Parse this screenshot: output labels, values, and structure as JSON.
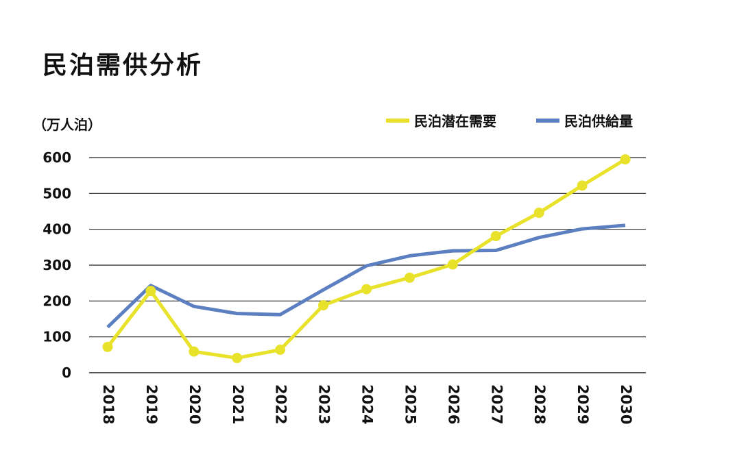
{
  "chart_data": {
    "type": "line",
    "title": "民泊需供分析",
    "unit_label": "（万人泊）",
    "categories": [
      "2018",
      "2019",
      "2020",
      "2021",
      "2022",
      "2023",
      "2024",
      "2025",
      "2026",
      "2027",
      "2028",
      "2029",
      "2030"
    ],
    "series": [
      {
        "name": "民泊潜在需要",
        "color": "#e8e22a",
        "markers": true,
        "values": [
          72,
          228,
          59,
          41,
          64,
          188,
          233,
          265,
          302,
          381,
          446,
          522,
          595
        ]
      },
      {
        "name": "民泊供給量",
        "color": "#5b7fc0",
        "markers": false,
        "values": [
          127,
          243,
          185,
          165,
          162,
          231,
          298,
          326,
          340,
          341,
          377,
          401,
          411
        ]
      }
    ],
    "yticks": [
      "0",
      "100",
      "200",
      "300",
      "400",
      "500",
      "600"
    ],
    "ylim": [
      0,
      600
    ],
    "grid": "horizontal",
    "legend": "top-right"
  }
}
